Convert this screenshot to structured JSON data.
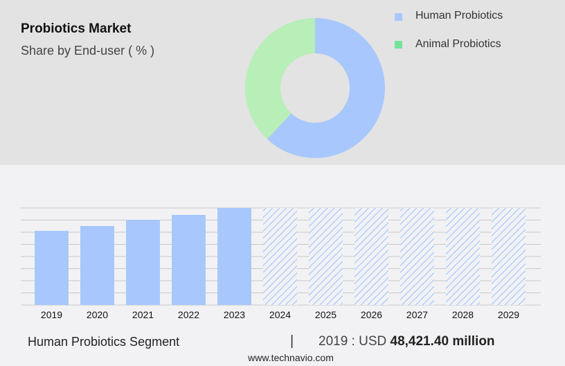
{
  "title": "Probiotics Market",
  "subtitle": "Share by End-user ( % )",
  "chart_data": [
    {
      "type": "pie",
      "donut": true,
      "series": [
        {
          "name": "Human Probiotics",
          "value": 62,
          "color": "#a8c8fd"
        },
        {
          "name": "Animal Probiotics",
          "value": 38,
          "color": "#b8eeb8"
        }
      ],
      "legend_colors": [
        "#a8c8fd",
        "#74e39a"
      ],
      "legend": "right"
    },
    {
      "type": "bar",
      "categories": [
        "2019",
        "2020",
        "2021",
        "2022",
        "2023",
        "2024",
        "2025",
        "2026",
        "2027",
        "2028",
        "2029"
      ],
      "values": [
        48421.4,
        51589,
        55662,
        58830,
        63356,
        null,
        null,
        null,
        null,
        null,
        null
      ],
      "forecast_hatched": [
        "2024",
        "2025",
        "2026",
        "2027",
        "2028",
        "2029"
      ],
      "color": "#a8c8fd",
      "grid": true,
      "ylim": [
        0,
        63356
      ]
    }
  ],
  "footer": {
    "segment": "Human Probiotics Segment",
    "separator": "|",
    "year_label": "2019 : USD",
    "value": "48,421.40 million",
    "site": "www.technavio.com"
  }
}
